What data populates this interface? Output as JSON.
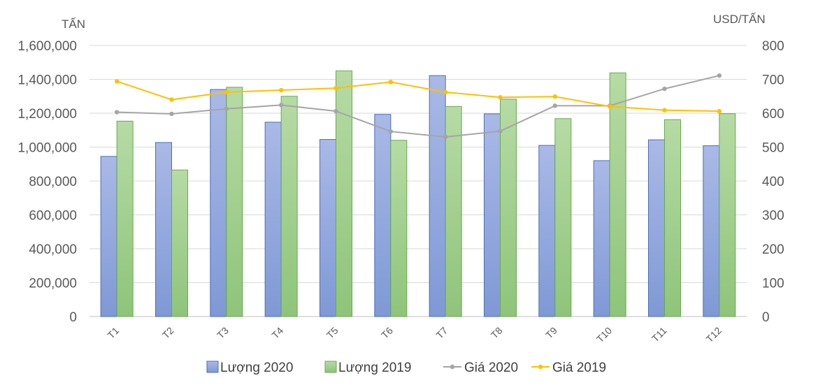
{
  "chart_data": {
    "type": "bar",
    "categories": [
      "T1",
      "T2",
      "T3",
      "T4",
      "T5",
      "T6",
      "T7",
      "T8",
      "T9",
      "T10",
      "T11",
      "T12"
    ],
    "ylabel": "TẤN",
    "y2label": "USD/TẤN",
    "ylim": [
      0,
      1600000
    ],
    "y2lim": [
      0,
      800
    ],
    "yticks": [
      "0",
      "200,000",
      "400,000",
      "600,000",
      "800,000",
      "1,000,000",
      "1,200,000",
      "1,400,000",
      "1,600,000"
    ],
    "y2ticks": [
      "0",
      "100",
      "200",
      "300",
      "400",
      "500",
      "600",
      "700",
      "800"
    ],
    "grid": true,
    "legend_position": "bottom",
    "series": [
      {
        "name": "Lượng 2020",
        "type": "bar",
        "axis": "left",
        "color": "#8ea6dc",
        "values": [
          945000,
          1027000,
          1340000,
          1147000,
          1045000,
          1193000,
          1422000,
          1196000,
          1010000,
          920000,
          1043000,
          1008000
        ]
      },
      {
        "name": "Lượng 2019",
        "type": "bar",
        "axis": "left",
        "color": "#9fcc8a",
        "values": [
          1153000,
          865000,
          1353000,
          1300000,
          1450000,
          1040000,
          1240000,
          1283000,
          1168000,
          1438000,
          1162000,
          1197000
        ]
      },
      {
        "name": "Giá 2020",
        "type": "line",
        "axis": "right",
        "color": "#a5a5a5",
        "values": [
          603,
          598,
          613,
          624,
          606,
          546,
          530,
          547,
          622,
          622,
          672,
          711
        ]
      },
      {
        "name": "Giá 2019",
        "type": "line",
        "axis": "right",
        "color": "#ffc000",
        "values": [
          694,
          640,
          662,
          668,
          674,
          692,
          662,
          647,
          649,
          620,
          609,
          606
        ]
      }
    ]
  }
}
